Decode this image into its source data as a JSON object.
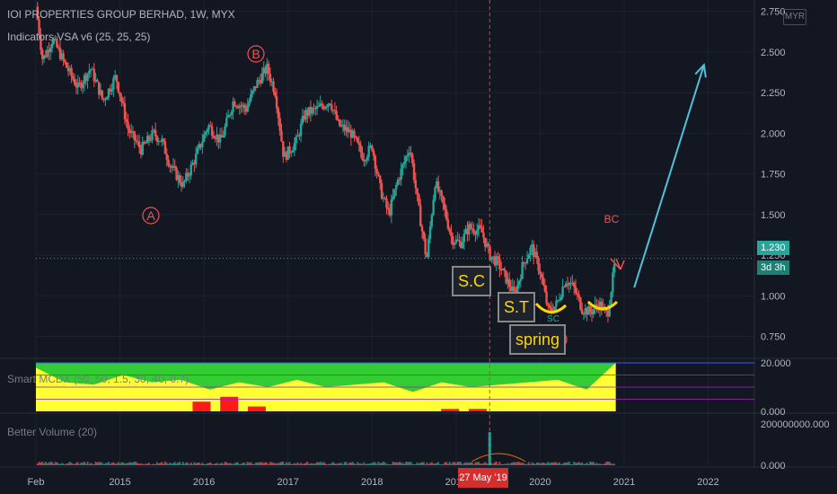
{
  "header": {
    "title": "IOI PROPERTIES GROUP BERHAD, 1W, MYX",
    "indicator_vsa": "Indicators VSA v6 (25, 25, 25)",
    "indicator_mcdx": "Smart MCDX (50, 50, 1.5, 30, 40, 0.7)",
    "indicator_volume": "Better Volume (20)"
  },
  "currency_badge": "MYR",
  "current_price_label": "1.230",
  "countdown_label": "3d 3h",
  "crosshair_date_label": "27 May '19",
  "annotations": {
    "sc_box": "S.C",
    "st_box": "S.T",
    "spring_box": "spring",
    "wave_a": "A",
    "wave_b": "B",
    "wave_c": "C",
    "bc": "BC",
    "sc_small": "SC"
  },
  "colors": {
    "background": "#131722",
    "up": "#26a69a",
    "down": "#ef5350",
    "annotation_red": "#ef5350",
    "arrow": "#4fc3d9",
    "yellow": "#ffd700",
    "mcdx_green": "#33cc33",
    "mcdx_yellow": "#ffff33",
    "mcdx_red": "#ff1a1a"
  },
  "chart_data": [
    {
      "type": "candlestick",
      "title": "IOI PROPERTIES GROUP BERHAD, 1W, MYX",
      "x_tick_labels": [
        "Feb",
        "2015",
        "2016",
        "2017",
        "2018",
        "2019",
        "2020",
        "2021",
        "2022"
      ],
      "y_tick_labels": [
        "0.750",
        "1.000",
        "1.250",
        "1.500",
        "1.750",
        "2.000",
        "2.250",
        "2.500",
        "2.750"
      ],
      "ylim": [
        0.62,
        2.82
      ],
      "xlim": [
        2014.0,
        2022.55
      ],
      "grid": true,
      "current_price": 1.23,
      "close_path": {
        "t": [
          2014.0,
          2014.08,
          2014.2,
          2014.35,
          2014.5,
          2014.65,
          2014.8,
          2014.95,
          2015.1,
          2015.25,
          2015.4,
          2015.5,
          2015.6,
          2015.75,
          2015.9,
          2016.05,
          2016.2,
          2016.35,
          2016.5,
          2016.62,
          2016.75,
          2016.85,
          2016.95,
          2017.1,
          2017.2,
          2017.35,
          2017.5,
          2017.6,
          2017.75,
          2017.9,
          2018.0,
          2018.1,
          2018.2,
          2018.3,
          2018.45,
          2018.55,
          2018.65,
          2018.75,
          2018.85,
          2018.95,
          2019.05,
          2019.15,
          2019.3,
          2019.4,
          2019.5,
          2019.6,
          2019.7,
          2019.8,
          2019.9,
          2020.0,
          2020.1,
          2020.2,
          2020.3,
          2020.4,
          2020.5,
          2020.6,
          2020.7,
          2020.8,
          2020.9
        ],
        "close": [
          2.78,
          2.45,
          2.58,
          2.42,
          2.28,
          2.4,
          2.2,
          2.35,
          2.02,
          1.9,
          2.0,
          1.95,
          1.8,
          1.68,
          1.85,
          2.05,
          1.95,
          2.2,
          2.15,
          2.3,
          2.4,
          2.25,
          1.85,
          1.95,
          2.12,
          2.15,
          2.2,
          2.05,
          2.0,
          1.85,
          1.92,
          1.65,
          1.5,
          1.7,
          1.92,
          1.55,
          1.22,
          1.7,
          1.55,
          1.35,
          1.32,
          1.42,
          1.4,
          1.25,
          1.2,
          1.1,
          1.0,
          1.2,
          1.3,
          1.15,
          0.9,
          0.95,
          1.1,
          1.05,
          0.92,
          0.9,
          0.95,
          0.88,
          1.23
        ]
      },
      "projection_arrow": {
        "from": [
          2021.12,
          1.05
        ],
        "to": [
          2021.95,
          2.42
        ]
      },
      "crosshair_x": 2019.4
    },
    {
      "type": "area",
      "title": "Smart MCDX (50, 50, 1.5, 30, 40, 0.7)",
      "y_tick_labels": [
        "0.000",
        "20.000"
      ],
      "ylim": [
        0,
        20
      ],
      "series": [
        {
          "name": "green",
          "values": [
            20
          ]
        },
        {
          "name": "yellow",
          "values": [
            18,
            12,
            11,
            15,
            12,
            13,
            9,
            12,
            10,
            13,
            10,
            11,
            12,
            8,
            12,
            10,
            11,
            12,
            13,
            9,
            20
          ]
        },
        {
          "name": "red",
          "values": [
            0,
            0,
            0,
            0,
            0,
            0,
            4,
            6,
            2,
            0,
            0,
            0,
            0,
            0,
            0,
            1,
            1,
            0,
            0,
            0,
            0,
            0
          ]
        }
      ]
    },
    {
      "type": "bar",
      "title": "Better Volume (20)",
      "y_tick_labels": [
        "0.000",
        "200000000.000"
      ],
      "ylim": [
        0,
        200000000
      ],
      "spike_at": 2019.4,
      "spike_value": 160000000
    }
  ]
}
